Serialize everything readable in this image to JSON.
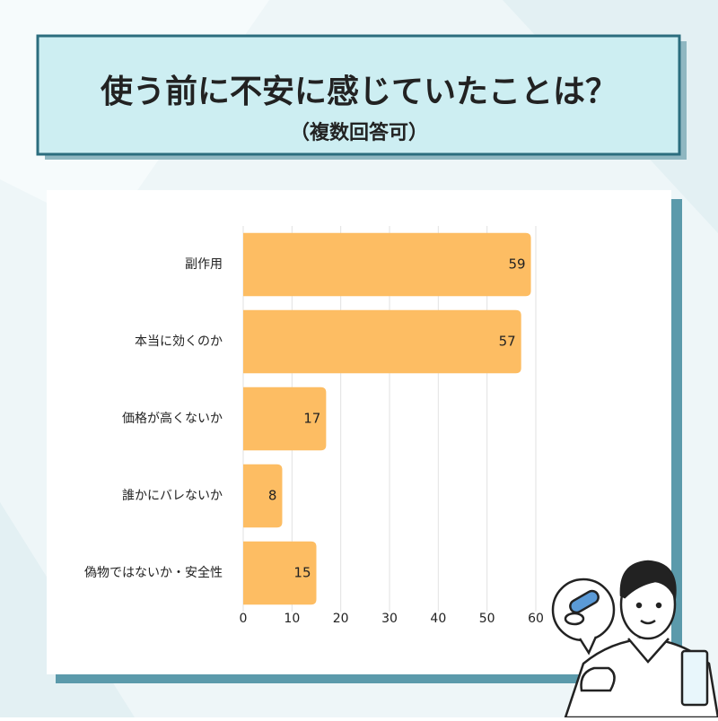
{
  "chart_data": {
    "type": "bar",
    "orientation": "horizontal",
    "title": "使う前に不安に感じていたことは？",
    "subtitle": "（複数回答可）",
    "categories": [
      "副作用",
      "本当に効くのか",
      "価格が高くないか",
      "誰かにバレないか",
      "偽物ではないか・安全性"
    ],
    "values": [
      59,
      57,
      17,
      8,
      15
    ],
    "color": "#fdbd63",
    "xlim": [
      0,
      60
    ],
    "xticks": [
      0,
      10,
      20,
      30,
      40,
      50,
      60
    ],
    "grid": true
  }
}
